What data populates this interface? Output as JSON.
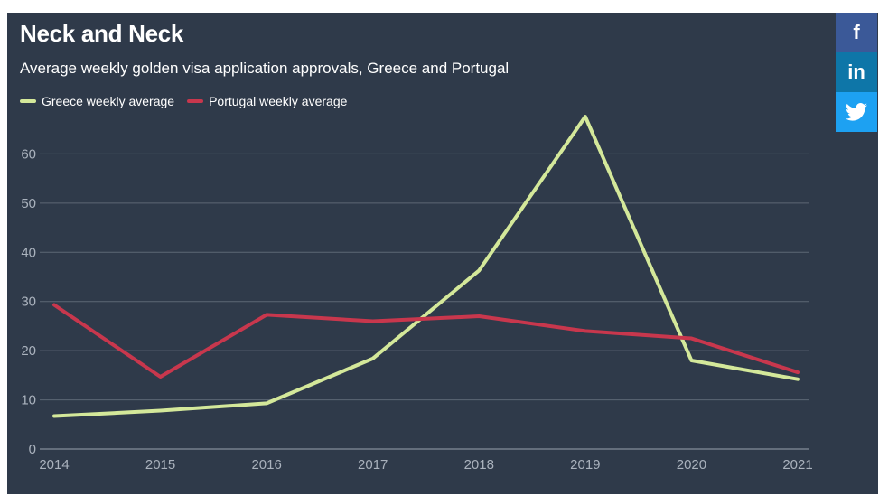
{
  "share": {
    "facebook_icon": "facebook-icon",
    "linkedin_icon": "linkedin-icon",
    "twitter_icon": "twitter-icon",
    "facebook_label": "f",
    "linkedin_label": "in"
  },
  "chart_data": {
    "type": "line",
    "title": "Neck and Neck",
    "subtitle": "Average weekly golden visa application approvals, Greece and Portugal",
    "x": [
      "2014",
      "2015",
      "2016",
      "2017",
      "2018",
      "2019",
      "2020",
      "2021"
    ],
    "series": [
      {
        "name": "Greece weekly average",
        "color": "#d4e89a",
        "values": [
          6.7,
          7.8,
          9.3,
          18.4,
          36.3,
          67.6,
          18.0,
          14.2
        ]
      },
      {
        "name": "Portugal weekly average",
        "color": "#c8374d",
        "values": [
          29.3,
          14.7,
          27.3,
          26.0,
          27.0,
          24.0,
          22.5,
          15.6
        ]
      }
    ],
    "ylim": [
      0,
      70
    ],
    "yticks": [
      0,
      10,
      20,
      30,
      40,
      50,
      60
    ],
    "grid": true,
    "legend_position": "top-left"
  }
}
